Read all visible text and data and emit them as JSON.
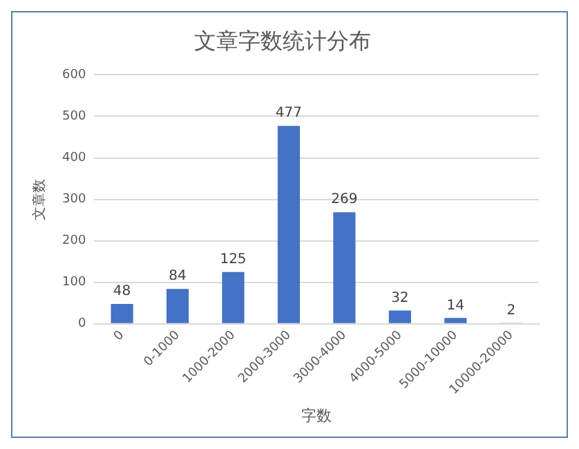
{
  "chart_data": {
    "type": "bar",
    "title": "文章字数统计分布",
    "xlabel": "字数",
    "ylabel": "文章数",
    "categories": [
      "0",
      "0-1000",
      "1000-2000",
      "2000-3000",
      "3000-4000",
      "4000-5000",
      "5000-10000",
      "10000-20000"
    ],
    "values": [
      48,
      84,
      125,
      477,
      269,
      32,
      14,
      2
    ],
    "color": "#4472c4",
    "ylim": [
      0,
      600
    ],
    "yticks": [
      0,
      100,
      200,
      300,
      400,
      500,
      600
    ],
    "grid": "y",
    "data_labels": true
  }
}
